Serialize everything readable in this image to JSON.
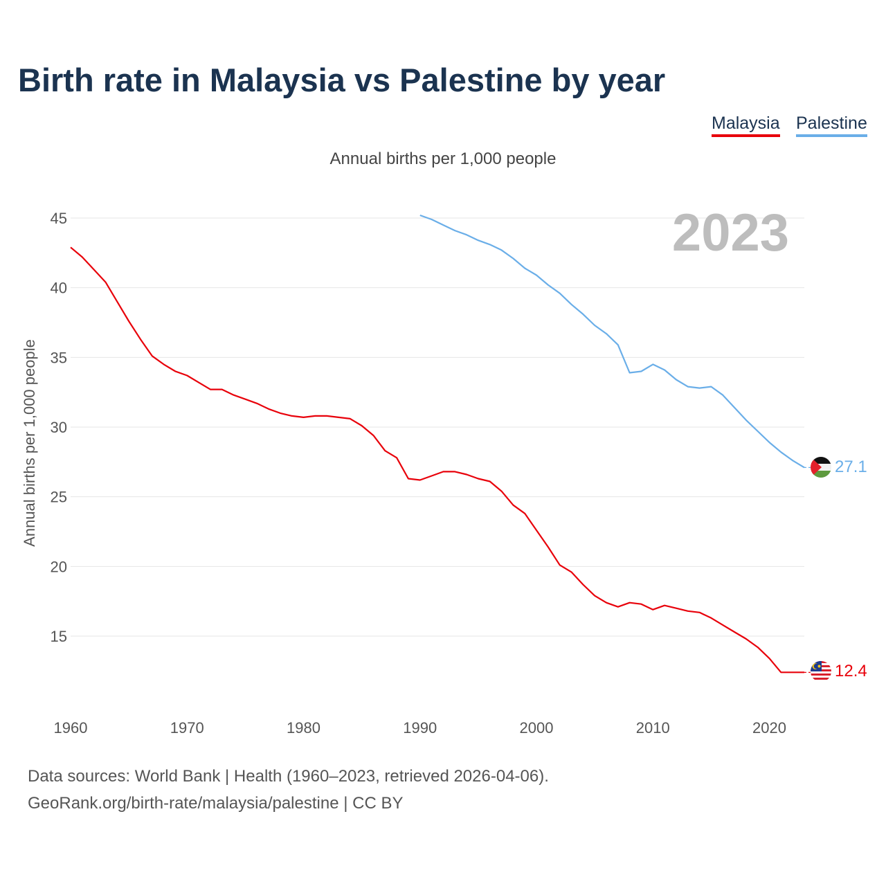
{
  "title": "Birth rate in Malaysia vs Palestine by year",
  "legend": [
    {
      "name": "Malaysia",
      "color": "#e8000a"
    },
    {
      "name": "Palestine",
      "color": "#6aaee8"
    }
  ],
  "sources": {
    "line1": "Data sources: World Bank | Health (1960–2023, retrieved 2026-04-06).",
    "line2": "GeoRank.org/birth-rate/malaysia/palestine | CC BY"
  },
  "chart_data": {
    "type": "line",
    "title": "Birth rate in Malaysia vs Palestine by year",
    "subtitle": "Annual births per 1,000 people",
    "ylabel": "Annual births per 1,000 people",
    "xlabel": "",
    "year_label": "2023",
    "xlim": [
      1960,
      2023
    ],
    "ylim": [
      10,
      47
    ],
    "x_ticks": [
      1960,
      1970,
      1980,
      1990,
      2000,
      2010,
      2020
    ],
    "y_ticks": [
      15,
      20,
      25,
      30,
      35,
      40,
      45
    ],
    "grid": true,
    "series": [
      {
        "name": "Malaysia",
        "color": "#e8000a",
        "end_label": "12.4",
        "x": [
          1960,
          1961,
          1962,
          1963,
          1964,
          1965,
          1966,
          1967,
          1968,
          1969,
          1970,
          1971,
          1972,
          1973,
          1974,
          1975,
          1976,
          1977,
          1978,
          1979,
          1980,
          1981,
          1982,
          1983,
          1984,
          1985,
          1986,
          1987,
          1988,
          1989,
          1990,
          1991,
          1992,
          1993,
          1994,
          1995,
          1996,
          1997,
          1998,
          1999,
          2000,
          2001,
          2002,
          2003,
          2004,
          2005,
          2006,
          2007,
          2008,
          2009,
          2010,
          2011,
          2012,
          2013,
          2014,
          2015,
          2016,
          2017,
          2018,
          2019,
          2020,
          2021,
          2022,
          2023
        ],
        "values": [
          42.9,
          42.2,
          41.3,
          40.4,
          39.0,
          37.6,
          36.3,
          35.1,
          34.5,
          34.0,
          33.7,
          33.2,
          32.7,
          32.7,
          32.3,
          32.0,
          31.7,
          31.3,
          31.0,
          30.8,
          30.7,
          30.8,
          30.8,
          30.7,
          30.6,
          30.1,
          29.4,
          28.3,
          27.8,
          26.3,
          26.2,
          26.5,
          26.8,
          26.8,
          26.6,
          26.3,
          26.1,
          25.4,
          24.4,
          23.8,
          22.6,
          21.4,
          20.1,
          19.6,
          18.7,
          17.9,
          17.4,
          17.1,
          17.4,
          17.3,
          16.9,
          17.2,
          17.0,
          16.8,
          16.7,
          16.3,
          15.8,
          15.3,
          14.8,
          14.2,
          13.4,
          12.4,
          12.4,
          12.4
        ]
      },
      {
        "name": "Palestine",
        "color": "#6aaee8",
        "end_label": "27.1",
        "x": [
          1990,
          1991,
          1992,
          1993,
          1994,
          1995,
          1996,
          1997,
          1998,
          1999,
          2000,
          2001,
          2002,
          2003,
          2004,
          2005,
          2006,
          2007,
          2008,
          2009,
          2010,
          2011,
          2012,
          2013,
          2014,
          2015,
          2016,
          2017,
          2018,
          2019,
          2020,
          2021,
          2022,
          2023
        ],
        "values": [
          45.2,
          44.9,
          44.5,
          44.1,
          43.8,
          43.4,
          43.1,
          42.7,
          42.1,
          41.4,
          40.9,
          40.2,
          39.6,
          38.8,
          38.1,
          37.3,
          36.7,
          35.9,
          33.9,
          34.0,
          34.5,
          34.1,
          33.4,
          32.9,
          32.8,
          32.9,
          32.3,
          31.4,
          30.5,
          29.7,
          28.9,
          28.2,
          27.6,
          27.1
        ]
      }
    ]
  }
}
